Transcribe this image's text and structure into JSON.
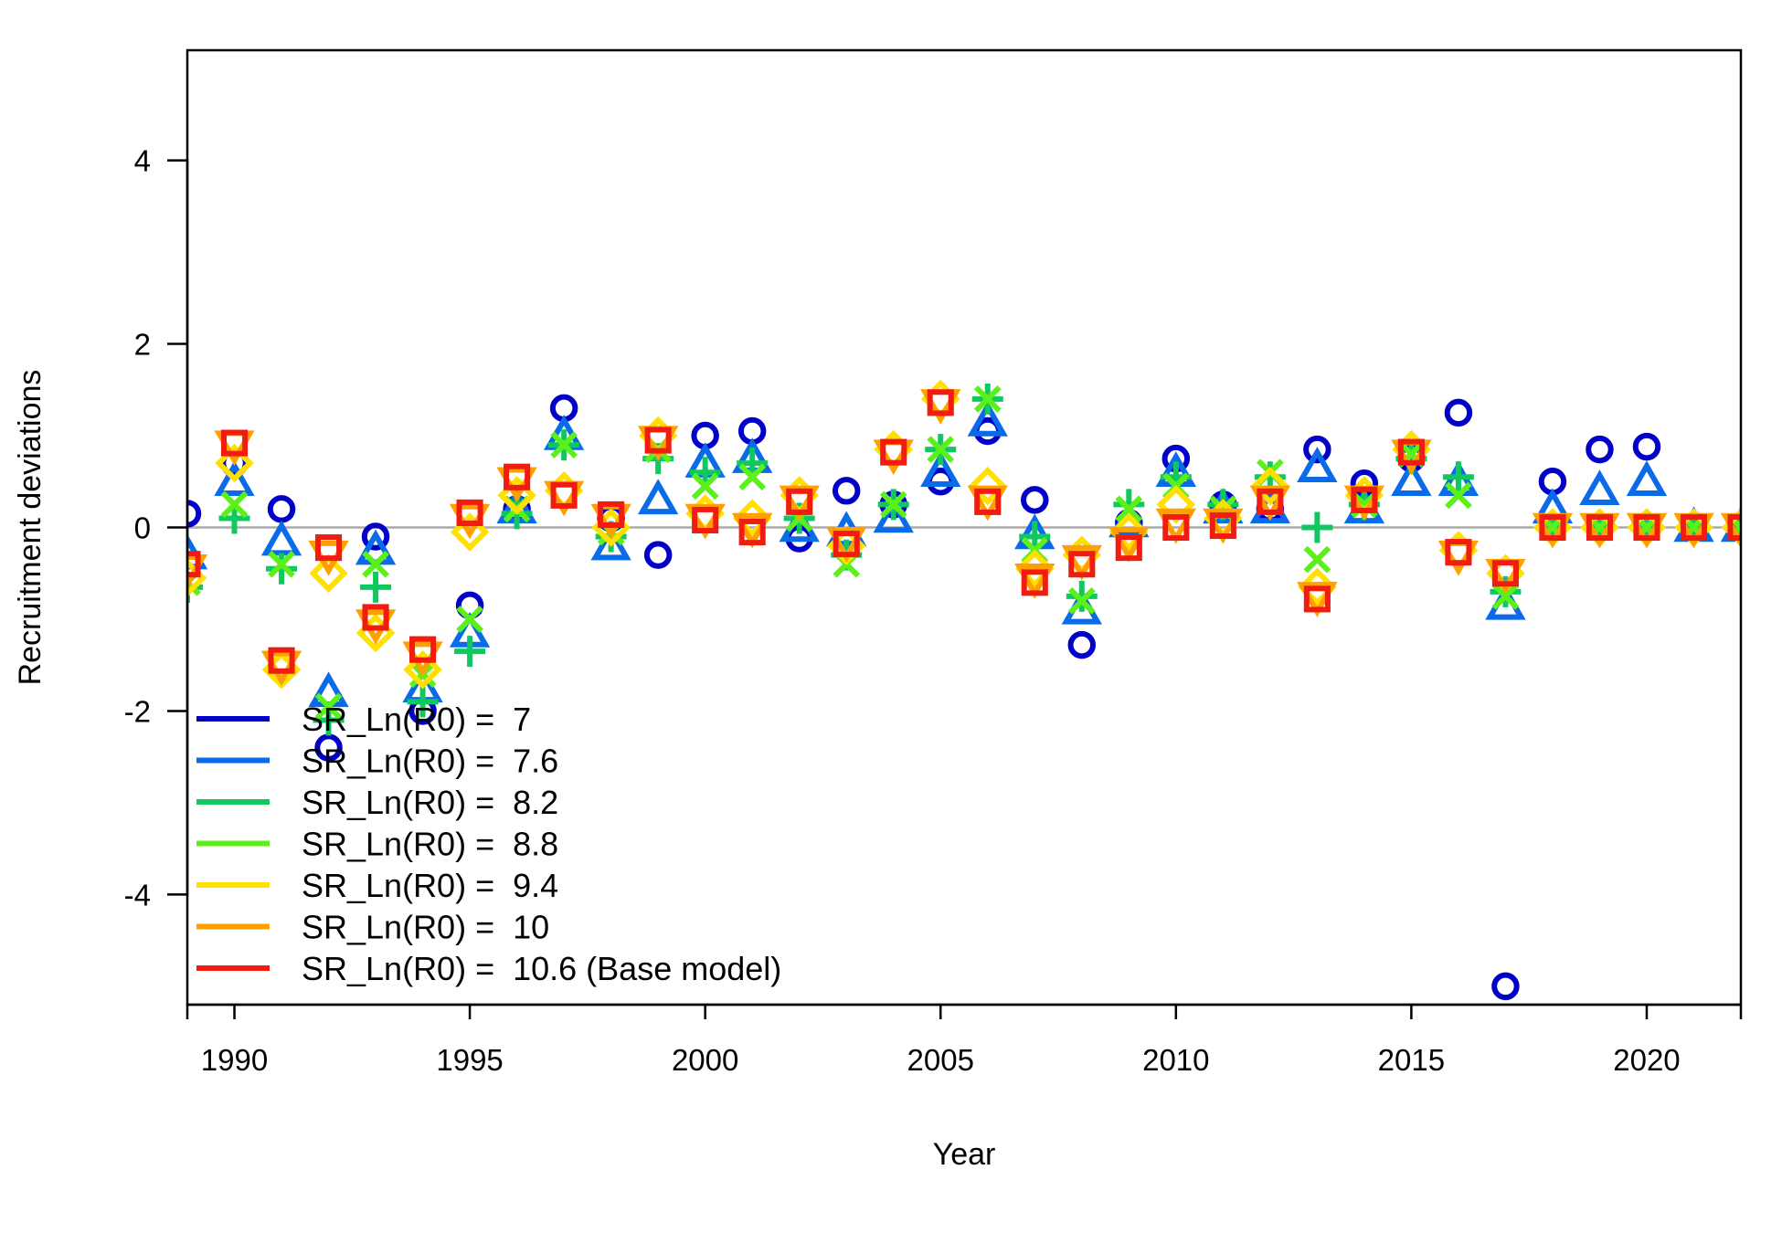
{
  "chart_data": {
    "type": "scatter",
    "xlabel": "Year",
    "ylabel": "Recruitment deviations",
    "xlim": [
      1989,
      2022
    ],
    "ylim": [
      -5.2,
      5.2
    ],
    "xticks": [
      1990,
      1995,
      2000,
      2005,
      2010,
      2015,
      2020
    ],
    "yticks": [
      -4,
      -2,
      0,
      2,
      4
    ],
    "reference_line": 0,
    "grid": false,
    "legend_position": "bottom-left",
    "x": [
      1989,
      1990,
      1991,
      1992,
      1993,
      1994,
      1995,
      1996,
      1997,
      1998,
      1999,
      2000,
      2001,
      2002,
      2003,
      2004,
      2005,
      2006,
      2007,
      2008,
      2009,
      2010,
      2011,
      2012,
      2013,
      2014,
      2015,
      2016,
      2017,
      2018,
      2019,
      2020,
      2021,
      2022
    ],
    "series": [
      {
        "name": "SR_Ln(R0) =  7",
        "color": "#0000c8",
        "marker": "circle",
        "values": [
          0.15,
          0.7,
          0.2,
          -2.4,
          -0.1,
          -2.0,
          -0.85,
          0.2,
          1.3,
          0.1,
          -0.3,
          1.0,
          1.05,
          -0.12,
          0.4,
          0.25,
          0.5,
          1.05,
          0.3,
          -1.28,
          0.05,
          0.75,
          0.25,
          0.2,
          0.85,
          0.48,
          0.75,
          1.25,
          -5.0,
          0.5,
          0.85,
          0.88,
          0.0,
          0.0
        ]
      },
      {
        "name": "SR_Ln(R0) =  7.6",
        "color": "#0a6be8",
        "marker": "triangle",
        "values": [
          -0.3,
          0.5,
          -0.15,
          -1.8,
          -0.25,
          -1.75,
          -1.15,
          0.2,
          1.0,
          -0.2,
          0.3,
          0.7,
          0.75,
          0.0,
          -0.05,
          0.1,
          0.6,
          1.15,
          -0.08,
          -0.9,
          0.05,
          0.6,
          0.2,
          0.2,
          0.65,
          0.2,
          0.5,
          0.5,
          -0.85,
          0.2,
          0.4,
          0.5,
          0.0,
          0.0
        ]
      },
      {
        "name": "SR_Ln(R0) =  8.2",
        "color": "#10c860",
        "marker": "plus",
        "values": [
          -0.65,
          0.1,
          -0.45,
          -2.1,
          -0.65,
          -1.9,
          -1.35,
          0.15,
          0.9,
          -0.1,
          0.75,
          0.6,
          0.7,
          0.1,
          -0.3,
          0.25,
          0.85,
          1.4,
          -0.1,
          -0.75,
          0.25,
          0.55,
          0.25,
          0.55,
          0.0,
          0.25,
          0.75,
          0.55,
          -0.7,
          0.0,
          0.0,
          0.0,
          0.0,
          0.0
        ]
      },
      {
        "name": "SR_Ln(R0) =  8.8",
        "color": "#5cf01a",
        "marker": "x",
        "values": [
          -0.6,
          0.25,
          -0.4,
          -1.95,
          -0.4,
          -1.6,
          -1.0,
          0.2,
          0.9,
          -0.05,
          0.85,
          0.45,
          0.55,
          0.1,
          -0.4,
          0.25,
          0.85,
          1.4,
          -0.25,
          -0.8,
          0.2,
          0.45,
          0.2,
          0.6,
          -0.35,
          0.25,
          0.8,
          0.35,
          -0.75,
          0.0,
          0.0,
          0.0,
          0.0,
          0.0
        ]
      },
      {
        "name": "SR_Ln(R0) =  9.4",
        "color": "#ffe000",
        "marker": "diamond",
        "values": [
          -0.55,
          0.7,
          -1.55,
          -0.5,
          -1.15,
          -1.55,
          -0.05,
          0.35,
          0.4,
          0.0,
          1.0,
          0.15,
          0.1,
          0.35,
          -0.2,
          0.85,
          1.4,
          0.45,
          -0.45,
          -0.3,
          -0.05,
          0.25,
          0.1,
          0.45,
          -0.65,
          0.35,
          0.85,
          -0.25,
          -0.5,
          0.0,
          0.0,
          0.0,
          0.0,
          0.0
        ]
      },
      {
        "name": "SR_Ln(R0) =  10",
        "color": "#ffa000",
        "marker": "triangle-down",
        "values": [
          -0.45,
          0.9,
          -1.5,
          -0.3,
          -1.05,
          -1.4,
          0.1,
          0.5,
          0.35,
          0.1,
          0.95,
          0.1,
          0.0,
          0.3,
          -0.15,
          0.8,
          1.35,
          0.3,
          -0.55,
          -0.35,
          -0.15,
          0.05,
          0.05,
          0.3,
          -0.75,
          0.3,
          0.8,
          -0.3,
          -0.5,
          0.0,
          0.0,
          0.0,
          0.0,
          0.0
        ]
      },
      {
        "name": "SR_Ln(R0) =  10.6 (Base model)",
        "color": "#f01c10",
        "marker": "square",
        "values": [
          -0.4,
          0.92,
          -1.45,
          -0.22,
          -0.98,
          -1.33,
          0.16,
          0.55,
          0.35,
          0.14,
          0.95,
          0.08,
          -0.05,
          0.28,
          -0.18,
          0.82,
          1.36,
          0.28,
          -0.6,
          -0.4,
          -0.22,
          0.0,
          0.02,
          0.28,
          -0.78,
          0.3,
          0.82,
          -0.27,
          -0.5,
          0.0,
          0.0,
          0.0,
          0.0,
          0.0
        ]
      }
    ]
  }
}
